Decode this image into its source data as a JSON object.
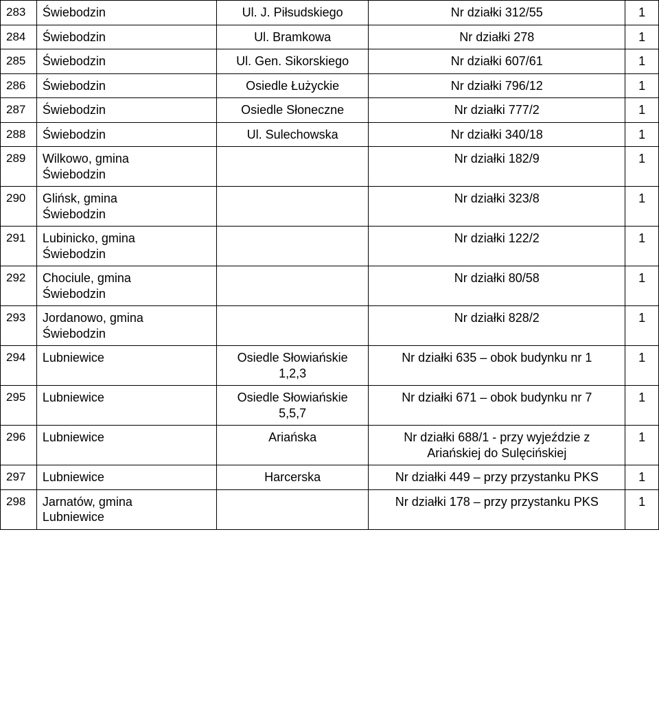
{
  "table": {
    "colors": {
      "border": "#000000",
      "background": "#ffffff",
      "text": "#000000"
    },
    "font_size_pt": 13,
    "rows": [
      {
        "num": "283",
        "place": "Świebodzin",
        "street": "Ul. J. Piłsudskiego",
        "desc": "Nr działki 312/55",
        "qty": "1"
      },
      {
        "num": "284",
        "place": "Świebodzin",
        "street": "Ul. Bramkowa",
        "desc": "Nr działki 278",
        "qty": "1"
      },
      {
        "num": "285",
        "place": "Świebodzin",
        "street": "Ul. Gen. Sikorskiego",
        "desc": "Nr działki 607/61",
        "qty": "1"
      },
      {
        "num": "286",
        "place": "Świebodzin",
        "street": "Osiedle Łużyckie",
        "desc": "Nr działki 796/12",
        "qty": "1"
      },
      {
        "num": "287",
        "place": "Świebodzin",
        "street": "Osiedle Słoneczne",
        "desc": "Nr działki 777/2",
        "qty": "1"
      },
      {
        "num": "288",
        "place": "Świebodzin",
        "street": "Ul. Sulechowska",
        "desc": "Nr działki 340/18",
        "qty": "1"
      },
      {
        "num": "289",
        "place": "Wilkowo, gmina\nŚwiebodzin",
        "street": "",
        "desc": "Nr działki 182/9",
        "qty": "1"
      },
      {
        "num": "290",
        "place": "Glińsk, gmina\nŚwiebodzin",
        "street": "",
        "desc": "Nr działki 323/8",
        "qty": "1"
      },
      {
        "num": "291",
        "place": "Lubinicko, gmina\nŚwiebodzin",
        "street": "",
        "desc": "Nr działki 122/2",
        "qty": "1"
      },
      {
        "num": "292",
        "place": "Chociule, gmina\nŚwiebodzin",
        "street": "",
        "desc": "Nr działki 80/58",
        "qty": "1"
      },
      {
        "num": "293",
        "place": "Jordanowo, gmina\nŚwiebodzin",
        "street": "",
        "desc": "Nr działki 828/2",
        "qty": "1"
      },
      {
        "num": "294",
        "place": "Lubniewice",
        "street": "Osiedle Słowiańskie\n1,2,3",
        "desc": "Nr działki 635 – obok budynku nr 1",
        "qty": "1"
      },
      {
        "num": "295",
        "place": "Lubniewice",
        "street": "Osiedle Słowiańskie\n5,5,7",
        "desc": "Nr działki 671 – obok budynku nr 7",
        "qty": "1"
      },
      {
        "num": "296",
        "place": "Lubniewice",
        "street": "Ariańska",
        "desc": "Nr działki 688/1  - przy wyjeździe z\nAriańskiej do Sulęcińskiej",
        "qty": "1"
      },
      {
        "num": "297",
        "place": "Lubniewice",
        "street": "Harcerska",
        "desc": "Nr działki 449 – przy przystanku PKS",
        "qty": "1"
      },
      {
        "num": "298",
        "place": "Jarnatów, gmina\nLubniewice",
        "street": "",
        "desc": "Nr działki 178 – przy przystanku PKS",
        "qty": "1"
      }
    ]
  }
}
